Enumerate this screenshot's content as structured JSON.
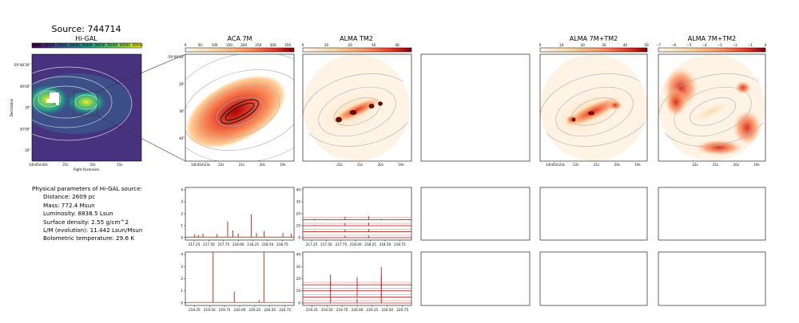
{
  "figure": {
    "source_title": "Source: 744714",
    "colors": {
      "spectrum": "#b00000",
      "offset_line": "#e34a4a",
      "contour": "#9aa0a6",
      "frame": "#000000"
    }
  },
  "params": {
    "heading": "Physical parameters of Hi-GAL source:",
    "lines": [
      "Distance: 2609 pc",
      "Mass: 772.4 Msun",
      "Luminosity: 8838.5 Lsun",
      "Surface density: 2.55 g/cm^2",
      "L/M (evolution): 11.442 Lsun/Msun",
      "Bolometric temperature: 29.6 K"
    ]
  },
  "maps": {
    "higal": {
      "title": "Hi-GAL",
      "colorbar_ticks": [
        "5000",
        "10000",
        "15000",
        "20000",
        "25000",
        "30000",
        "35000",
        "40000",
        "45000"
      ],
      "ytick_labels": [
        "-59°48'30\"",
        "49'00\"",
        "30\"",
        "50'00\"",
        "30\""
      ],
      "xtick_labels": [
        "14h45m30s",
        "25s",
        "20s",
        "15s"
      ],
      "xlabel": "Right Ascension",
      "ylabel": "Declination"
    },
    "aca": {
      "title": "ACA 7M",
      "colorbar_ticks": [
        "0",
        "50",
        "100",
        "150",
        "200",
        "250",
        "300",
        "350"
      ],
      "ytick_labels": [
        "-59°49'10\"",
        "20\"",
        "30\"",
        "40\""
      ],
      "xtick_labels": [
        "14h45m23s",
        "22s",
        "21s",
        "20s",
        "19s"
      ]
    },
    "tm2": {
      "title": "ALMA TM2",
      "colorbar_ticks": [
        "0",
        "10",
        "20",
        "30",
        "40"
      ],
      "xtick_labels": [
        "22s",
        "21s",
        "20s",
        "19s"
      ]
    },
    "combo": {
      "title": "ALMA 7M+TM2",
      "colorbar_ticks": [
        "0",
        "10",
        "20",
        "30",
        "40",
        "50"
      ],
      "xtick_labels": [
        "14h45m23s",
        "22s",
        "21s",
        "20s",
        "19s"
      ]
    },
    "combo_log": {
      "title": "ALMA 7M+TM2",
      "colorbar_ticks": [
        "−7",
        "−6",
        "−5",
        "−4",
        "−3",
        "−2",
        "−1",
        "0"
      ],
      "xtick_labels": [
        "22s",
        "21s",
        "20s",
        "19s"
      ]
    }
  },
  "chart_data": [
    {
      "type": "line",
      "panel": "ACA 7M spectrum, lower sideband",
      "xlim": [
        217.1,
        218.95
      ],
      "ylim": [
        -0.2,
        4.2
      ],
      "xticks": [
        217.25,
        217.5,
        217.75,
        218.0,
        218.25,
        218.5,
        218.75
      ],
      "yticks": [
        0,
        1,
        2,
        3,
        4
      ],
      "baseline": 0.05,
      "lines": [
        [
          217.26,
          0.25
        ],
        [
          217.32,
          0.2
        ],
        [
          217.4,
          0.3
        ],
        [
          217.64,
          0.25
        ],
        [
          217.82,
          1.3
        ],
        [
          217.91,
          0.55
        ],
        [
          218.0,
          0.3
        ],
        [
          218.22,
          1.9
        ],
        [
          218.31,
          0.35
        ],
        [
          218.44,
          0.5
        ],
        [
          218.76,
          0.35
        ],
        [
          218.9,
          0.3
        ]
      ]
    },
    {
      "type": "line",
      "panel": "ALMA TM2 spectra, lower sideband",
      "xlim": [
        217.1,
        218.95
      ],
      "ylim": [
        -2,
        42
      ],
      "xticks": [
        217.25,
        217.5,
        217.75,
        218.0,
        218.25,
        218.5,
        218.75
      ],
      "yticks": [
        0,
        10,
        20,
        30,
        40
      ],
      "offsets": [
        0,
        5,
        10,
        15
      ],
      "lines": [
        [
          217.3,
          0.7
        ],
        [
          217.5,
          0.5
        ],
        [
          217.82,
          2.5
        ],
        [
          218.22,
          2.8
        ],
        [
          218.44,
          0.6
        ],
        [
          218.76,
          0.5
        ]
      ]
    },
    {
      "type": "line",
      "panel": "ACA 7M spectrum, upper sideband",
      "xlim": [
        219.1,
        220.9
      ],
      "ylim": [
        -0.2,
        4.2
      ],
      "xticks": [
        219.25,
        219.5,
        219.75,
        220.0,
        220.25,
        220.5,
        220.75
      ],
      "yticks": [
        0,
        1,
        2,
        3,
        4
      ],
      "baseline": 0.05,
      "lines": [
        [
          219.56,
          4.2
        ],
        [
          219.91,
          0.9
        ],
        [
          220.4,
          4.2
        ],
        [
          220.32,
          0.2
        ]
      ]
    },
    {
      "type": "line",
      "panel": "ALMA TM2 spectra, upper sideband",
      "xlim": [
        219.1,
        220.9
      ],
      "ylim": [
        -2,
        42
      ],
      "xticks": [
        219.25,
        219.5,
        219.75,
        220.0,
        220.25,
        220.5,
        220.75
      ],
      "yticks": [
        0,
        10,
        20,
        30,
        40
      ],
      "offsets": [
        0,
        5,
        10,
        15
      ],
      "lines": [
        [
          219.56,
          8
        ],
        [
          220.0,
          6
        ],
        [
          220.4,
          14
        ]
      ]
    }
  ]
}
